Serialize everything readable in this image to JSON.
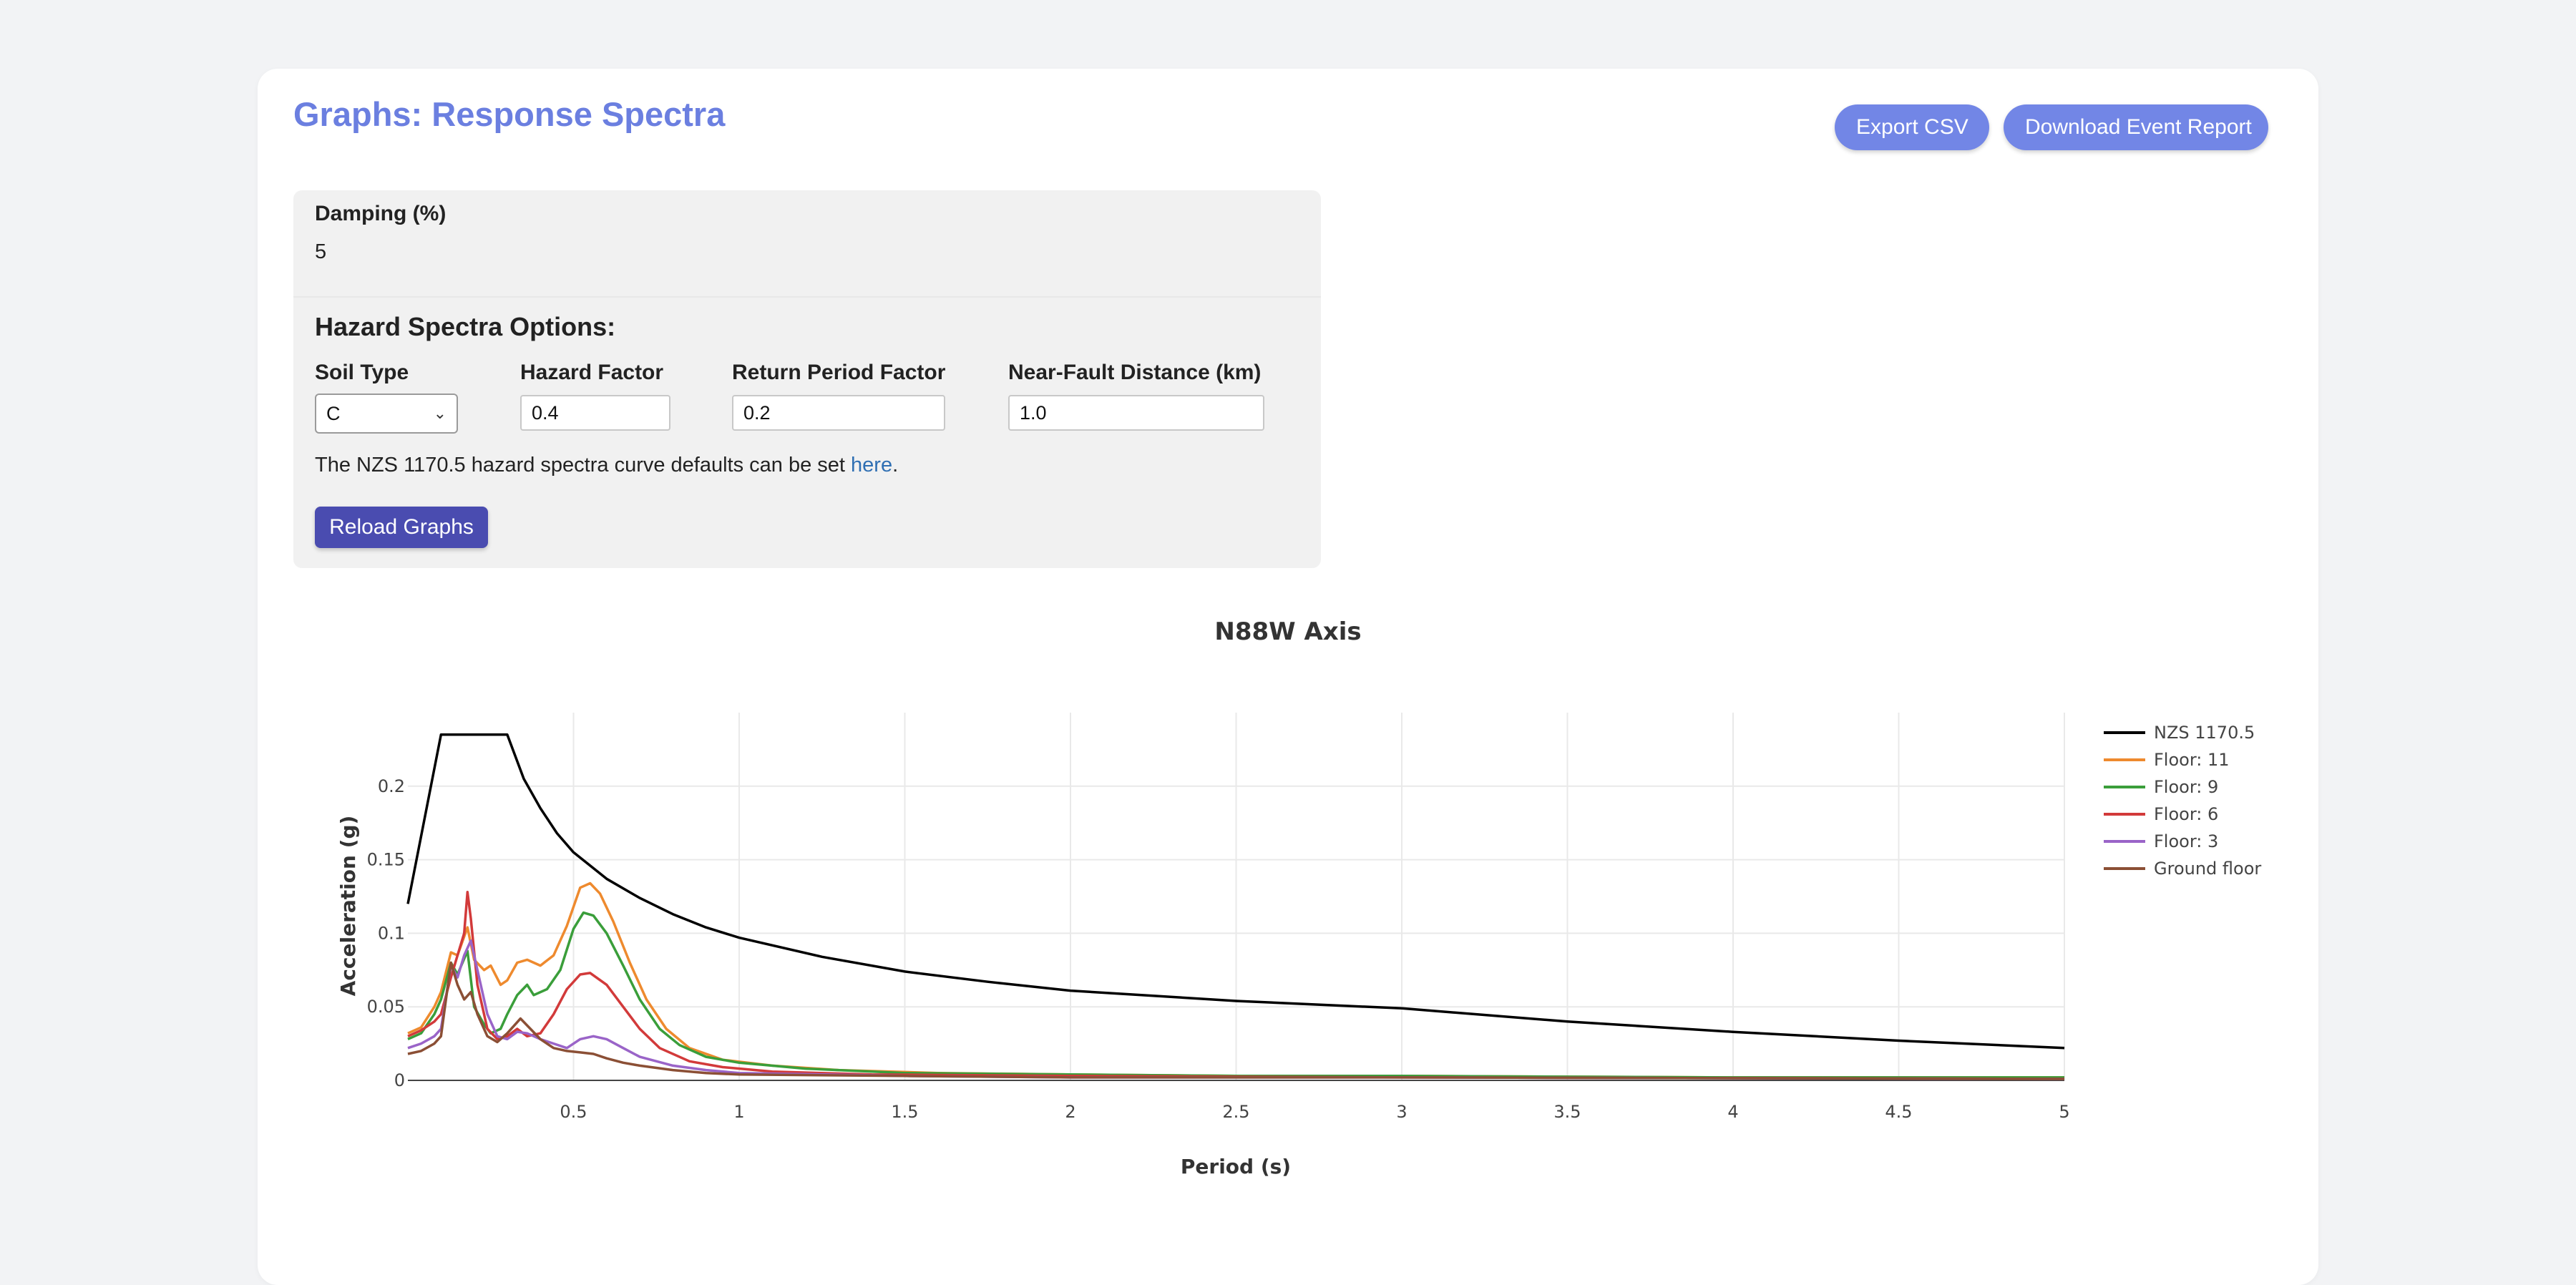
{
  "page": {
    "title": "Graphs: Response Spectra",
    "export_csv_label": "Export CSV",
    "download_report_label": "Download Event Report"
  },
  "options": {
    "damping_label": "Damping (%)",
    "damping_value": "5",
    "hazard_title": "Hazard Spectra Options:",
    "soil_type_label": "Soil Type",
    "soil_type_value": "C",
    "hazard_factor_label": "Hazard Factor",
    "hazard_factor_value": "0.4",
    "return_period_label": "Return Period Factor",
    "return_period_value": "0.2",
    "near_fault_label": "Near-Fault Distance (km)",
    "near_fault_value": "1.0",
    "defaults_text": "The NZS 1170.5 hazard spectra curve defaults can be set ",
    "defaults_link": "here",
    "defaults_end": ".",
    "reload_label": "Reload Graphs"
  },
  "colors": {
    "accent": "#7286e6",
    "title": "#6b7fe0",
    "reload": "#4a4cb0",
    "link": "#2f6fb3"
  },
  "chart_data": {
    "type": "line",
    "title": "N88W Axis",
    "xlabel": "Period (s)",
    "ylabel": "Acceleration (g)",
    "xlim": [
      0.0,
      5.0
    ],
    "ylim": [
      0,
      0.25
    ],
    "xticks": [
      0.5,
      1,
      1.5,
      2,
      2.5,
      3,
      3.5,
      4,
      4.5,
      5
    ],
    "xtick_labels": [
      "0.5",
      "1",
      "1.5",
      "2",
      "2.5",
      "3",
      "3.5",
      "4",
      "4.5",
      "5"
    ],
    "yticks": [
      0,
      0.05,
      0.1,
      0.15,
      0.2
    ],
    "ytick_labels": [
      "0",
      "0.05",
      "0.1",
      "0.15",
      "0.2"
    ],
    "grid": true,
    "legend_position": "right",
    "series": [
      {
        "name": "NZS 1170.5",
        "color": "#000000",
        "points": [
          [
            0.0,
            0.12
          ],
          [
            0.1,
            0.235
          ],
          [
            0.3,
            0.235
          ],
          [
            0.35,
            0.205
          ],
          [
            0.4,
            0.185
          ],
          [
            0.45,
            0.168
          ],
          [
            0.5,
            0.155
          ],
          [
            0.6,
            0.137
          ],
          [
            0.7,
            0.124
          ],
          [
            0.8,
            0.113
          ],
          [
            0.9,
            0.104
          ],
          [
            1.0,
            0.097
          ],
          [
            1.25,
            0.084
          ],
          [
            1.5,
            0.074
          ],
          [
            1.75,
            0.067
          ],
          [
            2.0,
            0.061
          ],
          [
            2.5,
            0.054
          ],
          [
            3.0,
            0.049
          ],
          [
            3.5,
            0.04
          ],
          [
            4.0,
            0.033
          ],
          [
            4.5,
            0.027
          ],
          [
            5.0,
            0.022
          ]
        ]
      },
      {
        "name": "Floor: 11",
        "color": "#ee8a2e",
        "points": [
          [
            0.0,
            0.032
          ],
          [
            0.04,
            0.036
          ],
          [
            0.08,
            0.05
          ],
          [
            0.1,
            0.06
          ],
          [
            0.13,
            0.087
          ],
          [
            0.15,
            0.085
          ],
          [
            0.18,
            0.104
          ],
          [
            0.2,
            0.082
          ],
          [
            0.23,
            0.075
          ],
          [
            0.25,
            0.078
          ],
          [
            0.28,
            0.065
          ],
          [
            0.3,
            0.068
          ],
          [
            0.33,
            0.08
          ],
          [
            0.36,
            0.082
          ],
          [
            0.4,
            0.078
          ],
          [
            0.44,
            0.085
          ],
          [
            0.48,
            0.105
          ],
          [
            0.52,
            0.131
          ],
          [
            0.55,
            0.134
          ],
          [
            0.58,
            0.127
          ],
          [
            0.62,
            0.108
          ],
          [
            0.67,
            0.08
          ],
          [
            0.72,
            0.055
          ],
          [
            0.78,
            0.035
          ],
          [
            0.85,
            0.022
          ],
          [
            0.95,
            0.014
          ],
          [
            1.1,
            0.01
          ],
          [
            1.3,
            0.007
          ],
          [
            1.6,
            0.005
          ],
          [
            2.0,
            0.004
          ],
          [
            2.5,
            0.003
          ],
          [
            3.0,
            0.003
          ],
          [
            4.0,
            0.002
          ],
          [
            5.0,
            0.002
          ]
        ]
      },
      {
        "name": "Floor: 9",
        "color": "#3a9e3a",
        "points": [
          [
            0.0,
            0.028
          ],
          [
            0.04,
            0.032
          ],
          [
            0.08,
            0.045
          ],
          [
            0.1,
            0.055
          ],
          [
            0.13,
            0.08
          ],
          [
            0.15,
            0.072
          ],
          [
            0.18,
            0.088
          ],
          [
            0.2,
            0.05
          ],
          [
            0.23,
            0.038
          ],
          [
            0.25,
            0.032
          ],
          [
            0.28,
            0.035
          ],
          [
            0.3,
            0.045
          ],
          [
            0.33,
            0.058
          ],
          [
            0.36,
            0.065
          ],
          [
            0.38,
            0.058
          ],
          [
            0.42,
            0.062
          ],
          [
            0.46,
            0.075
          ],
          [
            0.5,
            0.103
          ],
          [
            0.53,
            0.114
          ],
          [
            0.56,
            0.112
          ],
          [
            0.6,
            0.1
          ],
          [
            0.65,
            0.078
          ],
          [
            0.7,
            0.055
          ],
          [
            0.76,
            0.035
          ],
          [
            0.82,
            0.024
          ],
          [
            0.9,
            0.016
          ],
          [
            1.0,
            0.012
          ],
          [
            1.2,
            0.008
          ],
          [
            1.5,
            0.005
          ],
          [
            2.0,
            0.004
          ],
          [
            2.5,
            0.003
          ],
          [
            3.0,
            0.003
          ],
          [
            4.0,
            0.002
          ],
          [
            5.0,
            0.002
          ]
        ]
      },
      {
        "name": "Floor: 6",
        "color": "#d23a3a",
        "points": [
          [
            0.0,
            0.03
          ],
          [
            0.04,
            0.034
          ],
          [
            0.08,
            0.04
          ],
          [
            0.1,
            0.045
          ],
          [
            0.13,
            0.07
          ],
          [
            0.15,
            0.085
          ],
          [
            0.17,
            0.1
          ],
          [
            0.18,
            0.128
          ],
          [
            0.19,
            0.11
          ],
          [
            0.21,
            0.065
          ],
          [
            0.24,
            0.035
          ],
          [
            0.27,
            0.028
          ],
          [
            0.3,
            0.03
          ],
          [
            0.33,
            0.035
          ],
          [
            0.36,
            0.03
          ],
          [
            0.4,
            0.032
          ],
          [
            0.44,
            0.045
          ],
          [
            0.48,
            0.062
          ],
          [
            0.52,
            0.072
          ],
          [
            0.55,
            0.073
          ],
          [
            0.6,
            0.065
          ],
          [
            0.65,
            0.05
          ],
          [
            0.7,
            0.035
          ],
          [
            0.76,
            0.022
          ],
          [
            0.85,
            0.013
          ],
          [
            0.95,
            0.009
          ],
          [
            1.1,
            0.006
          ],
          [
            1.4,
            0.004
          ],
          [
            2.0,
            0.003
          ],
          [
            3.0,
            0.002
          ],
          [
            5.0,
            0.001
          ]
        ]
      },
      {
        "name": "Floor: 3",
        "color": "#9a64c8",
        "points": [
          [
            0.0,
            0.022
          ],
          [
            0.04,
            0.025
          ],
          [
            0.08,
            0.03
          ],
          [
            0.1,
            0.035
          ],
          [
            0.13,
            0.078
          ],
          [
            0.15,
            0.07
          ],
          [
            0.17,
            0.085
          ],
          [
            0.19,
            0.095
          ],
          [
            0.21,
            0.075
          ],
          [
            0.24,
            0.045
          ],
          [
            0.27,
            0.03
          ],
          [
            0.3,
            0.028
          ],
          [
            0.33,
            0.033
          ],
          [
            0.36,
            0.032
          ],
          [
            0.4,
            0.028
          ],
          [
            0.44,
            0.025
          ],
          [
            0.48,
            0.022
          ],
          [
            0.52,
            0.028
          ],
          [
            0.56,
            0.03
          ],
          [
            0.6,
            0.028
          ],
          [
            0.65,
            0.022
          ],
          [
            0.7,
            0.016
          ],
          [
            0.8,
            0.01
          ],
          [
            0.9,
            0.007
          ],
          [
            1.0,
            0.005
          ],
          [
            1.5,
            0.003
          ],
          [
            2.0,
            0.002
          ],
          [
            3.0,
            0.002
          ],
          [
            5.0,
            0.001
          ]
        ]
      },
      {
        "name": "Ground floor",
        "color": "#8b4f35",
        "points": [
          [
            0.0,
            0.018
          ],
          [
            0.04,
            0.02
          ],
          [
            0.08,
            0.025
          ],
          [
            0.1,
            0.03
          ],
          [
            0.13,
            0.08
          ],
          [
            0.15,
            0.065
          ],
          [
            0.17,
            0.055
          ],
          [
            0.19,
            0.06
          ],
          [
            0.21,
            0.045
          ],
          [
            0.24,
            0.03
          ],
          [
            0.27,
            0.026
          ],
          [
            0.3,
            0.032
          ],
          [
            0.34,
            0.042
          ],
          [
            0.37,
            0.035
          ],
          [
            0.4,
            0.028
          ],
          [
            0.44,
            0.022
          ],
          [
            0.48,
            0.02
          ],
          [
            0.52,
            0.019
          ],
          [
            0.56,
            0.018
          ],
          [
            0.6,
            0.015
          ],
          [
            0.65,
            0.012
          ],
          [
            0.7,
            0.01
          ],
          [
            0.8,
            0.007
          ],
          [
            0.9,
            0.005
          ],
          [
            1.0,
            0.004
          ],
          [
            1.5,
            0.003
          ],
          [
            2.0,
            0.002
          ],
          [
            3.0,
            0.002
          ],
          [
            5.0,
            0.001
          ]
        ]
      }
    ]
  }
}
